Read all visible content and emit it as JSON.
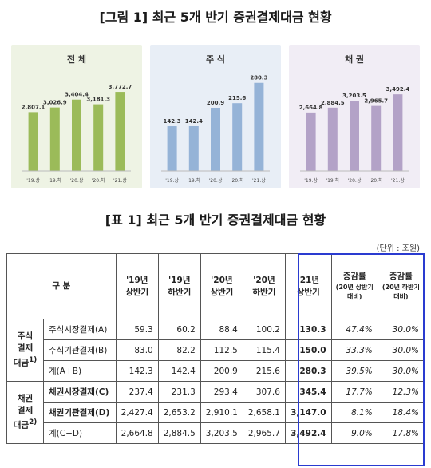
{
  "figure_title": "[그림 1] 최근 5개 반기 증권결제대금 현황",
  "table_title": "[표 1] 최근 5개 반기 증권결제대금 현황",
  "unit_label": "(단위 : 조원)",
  "colors": {
    "total": "#9bbb59",
    "stock": "#95b3d7",
    "bond": "#b3a2c7",
    "highlight": "#2a3bd0"
  },
  "chart_data": [
    {
      "type": "bar",
      "title": "전 체",
      "categories": [
        "'19.상",
        "'19.하",
        "'20.상",
        "'20.하",
        "'21.상"
      ],
      "values": [
        2807.1,
        3026.9,
        3404.4,
        3181.3,
        3772.7
      ],
      "value_labels": [
        "2,807.1",
        "3,026.9",
        "3,404.4",
        "3,181.3",
        "3,772.7"
      ],
      "ylim": [
        0,
        4500
      ],
      "grid": false
    },
    {
      "type": "bar",
      "title": "주 식",
      "categories": [
        "'19.상",
        "'19.하",
        "'20.상",
        "'20.하",
        "'21.상"
      ],
      "values": [
        142.3,
        142.4,
        200.9,
        215.6,
        280.3
      ],
      "value_labels": [
        "142.3",
        "142.4",
        "200.9",
        "215.6",
        "280.3"
      ],
      "ylim": [
        0,
        300
      ],
      "grid": false
    },
    {
      "type": "bar",
      "title": "채 권",
      "categories": [
        "'19.상",
        "'19.하",
        "'20.상",
        "'20.하",
        "'21.상"
      ],
      "values": [
        2664.8,
        2884.5,
        3203.5,
        2965.7,
        3492.4
      ],
      "value_labels": [
        "2,664.8",
        "2,884.5",
        "3,203.5",
        "2,965.7",
        "3,492.4"
      ],
      "ylim": [
        0,
        4300
      ],
      "grid": false
    }
  ],
  "table": {
    "header_group": "구  분",
    "col_19h1": [
      "'19년",
      "상반기"
    ],
    "col_19h2": [
      "'19년",
      "하반기"
    ],
    "col_20h1": [
      "'20년",
      "상반기"
    ],
    "col_20h2": [
      "'20년",
      "하반기"
    ],
    "col_21h1": [
      "'21년",
      "상반기"
    ],
    "col_rate1": [
      "증감률",
      "(20년 상반기",
      "대비)"
    ],
    "col_rate2": [
      "증감률",
      "(20년 하반기",
      "대비)"
    ],
    "stock_group": [
      "주식",
      "결제",
      "대금",
      "1)"
    ],
    "bond_group": [
      "채권",
      "결제",
      "대금",
      "2)"
    ],
    "rows": [
      {
        "item": "주식시장결제(A)",
        "v": [
          "59.3",
          "60.2",
          "88.4",
          "100.2",
          "130.3"
        ],
        "r": [
          "47.4%",
          "30.0%"
        ]
      },
      {
        "item": "주식기관결제(B)",
        "v": [
          "83.0",
          "82.2",
          "112.5",
          "115.4",
          "150.0"
        ],
        "r": [
          "33.3%",
          "30.0%"
        ]
      },
      {
        "item": "계(A+B)",
        "v": [
          "142.3",
          "142.4",
          "200.9",
          "215.6",
          "280.3"
        ],
        "r": [
          "39.5%",
          "30.0%"
        ]
      },
      {
        "item": "채권시장결제(C)",
        "v": [
          "237.4",
          "231.3",
          "293.4",
          "307.6",
          "345.4"
        ],
        "r": [
          "17.7%",
          "12.3%"
        ]
      },
      {
        "item": "채권기관결제(D)",
        "v": [
          "2,427.4",
          "2,653.2",
          "2,910.1",
          "2,658.1",
          "3,147.0"
        ],
        "r": [
          "8.1%",
          "18.4%"
        ]
      },
      {
        "item": "계(C+D)",
        "v": [
          "2,664.8",
          "2,884.5",
          "3,203.5",
          "2,965.7",
          "3,492.4"
        ],
        "r": [
          "9.0%",
          "17.8%"
        ]
      }
    ]
  }
}
